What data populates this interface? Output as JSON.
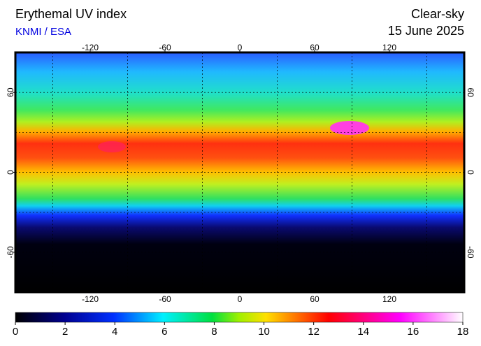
{
  "header": {
    "title": "Erythemal UV index",
    "source": "KNMI / ESA",
    "mode": "Clear-sky",
    "date": "15 June 2025"
  },
  "map": {
    "lonlim": [
      -180,
      180
    ],
    "latlim": [
      -90,
      90
    ],
    "lon_ticks": [
      -120,
      -60,
      0,
      60,
      120
    ],
    "lat_ticks": [
      60,
      0,
      -60
    ]
  },
  "colorbar": {
    "lim": [
      0,
      18
    ],
    "ticks": [
      0,
      2,
      4,
      6,
      8,
      10,
      12,
      14,
      16,
      18
    ]
  }
}
